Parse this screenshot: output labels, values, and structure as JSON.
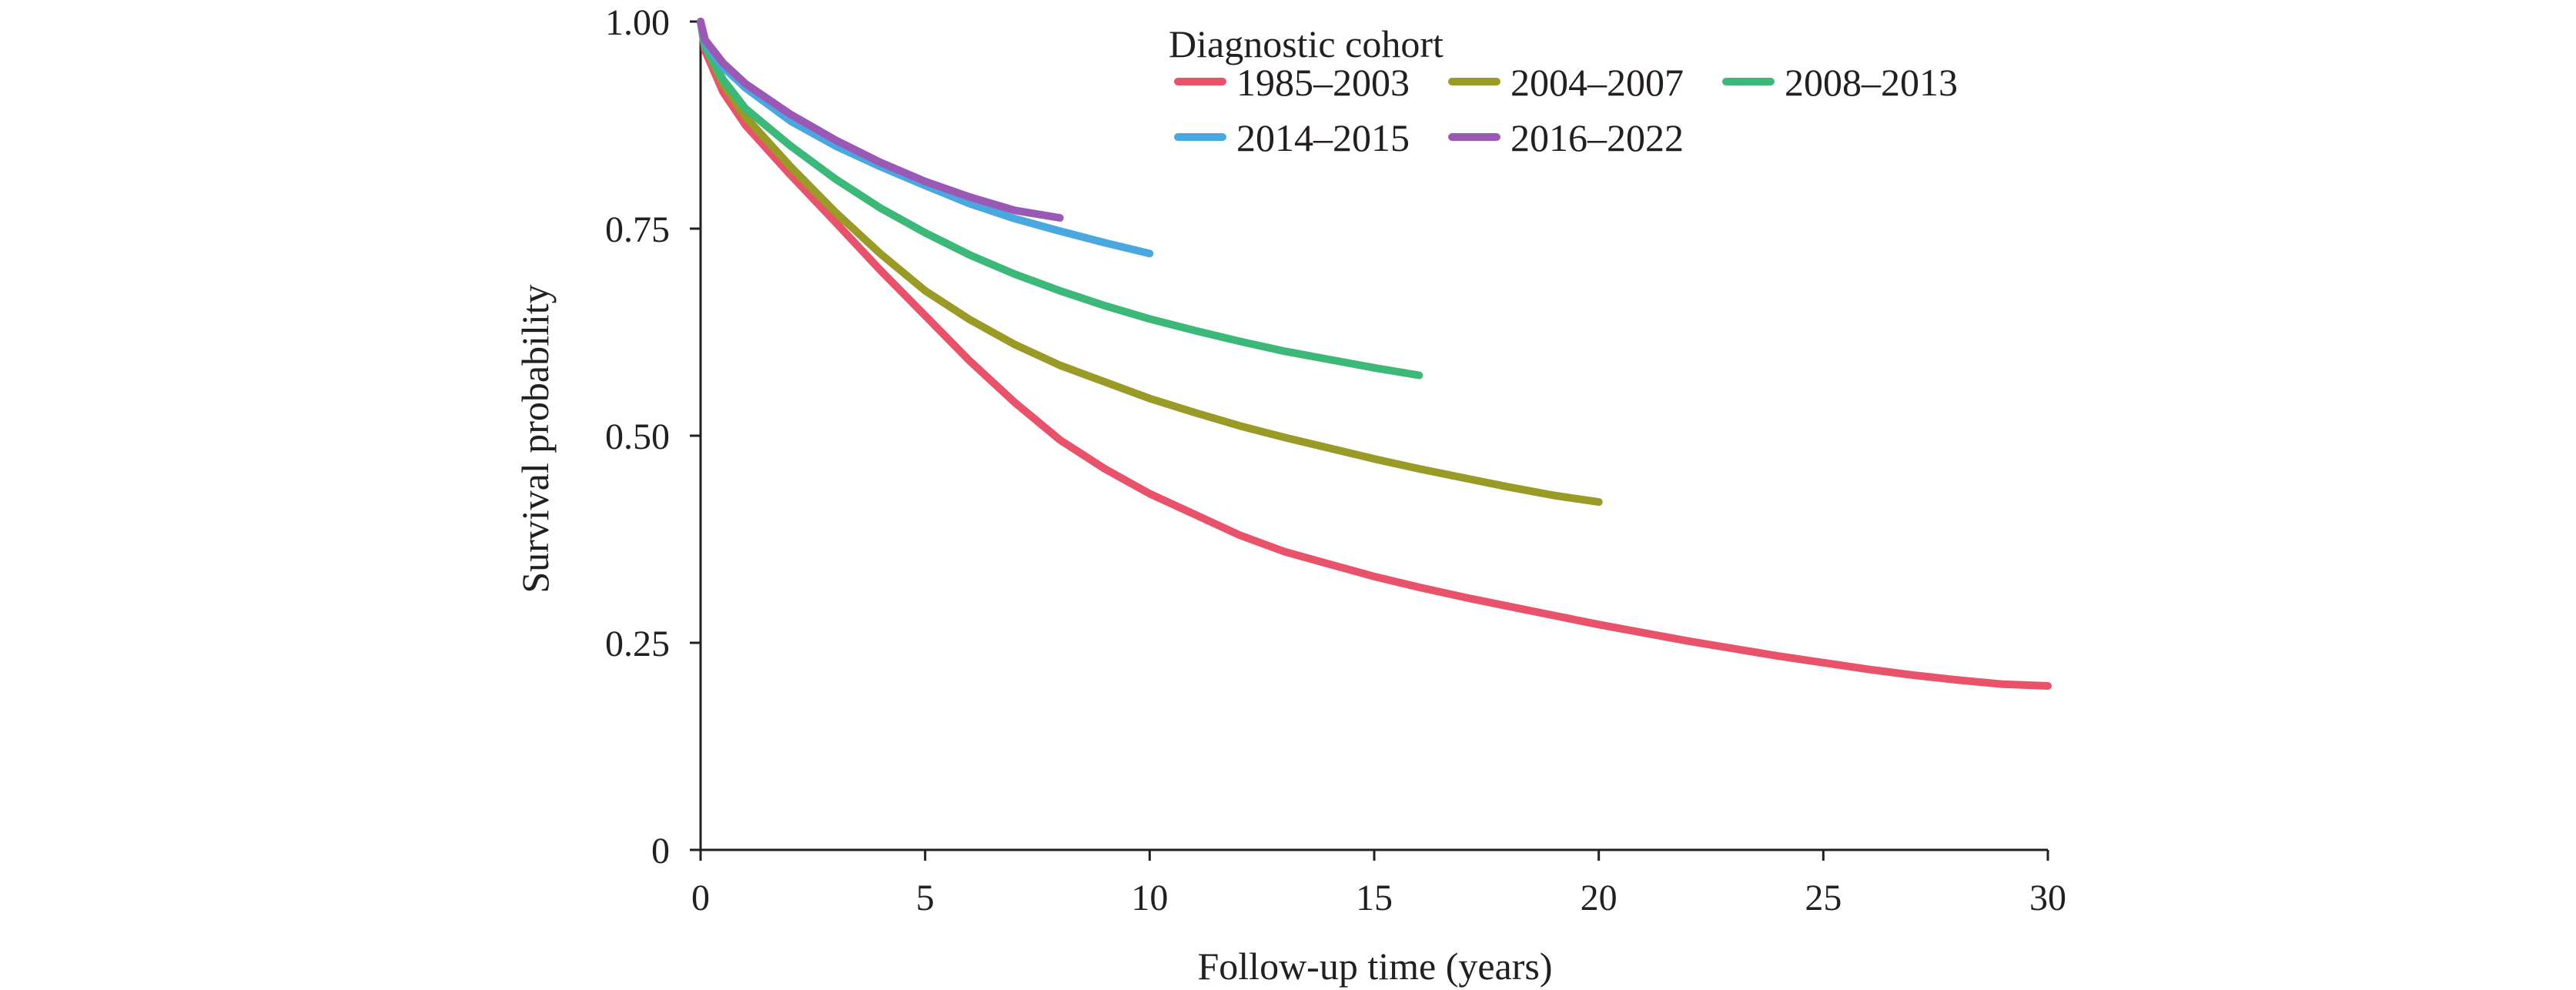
{
  "chart_data": {
    "type": "line",
    "title": "",
    "xlabel": "Follow-up time (years)",
    "ylabel": "Survival probability",
    "xlim": [
      0,
      30
    ],
    "ylim": [
      0,
      1
    ],
    "x_ticks": [
      0,
      5,
      10,
      15,
      20,
      25,
      30
    ],
    "x_tick_labels": [
      "0",
      "5",
      "10",
      "15",
      "20",
      "25",
      "30"
    ],
    "y_ticks": [
      0,
      0.25,
      0.5,
      0.75,
      1.0
    ],
    "y_tick_labels": [
      "0",
      "0.25",
      "0.50",
      "0.75",
      "1.00"
    ],
    "grid": false,
    "legend": {
      "title": "Diagnostic cohort",
      "position": "top-right"
    },
    "series": [
      {
        "name": "1985–2003",
        "color": "#e8536b",
        "points": [
          [
            0,
            1.0
          ],
          [
            0.1,
            0.965
          ],
          [
            0.5,
            0.915
          ],
          [
            1,
            0.875
          ],
          [
            2,
            0.815
          ],
          [
            3,
            0.758
          ],
          [
            4,
            0.7
          ],
          [
            5,
            0.645
          ],
          [
            6,
            0.59
          ],
          [
            7,
            0.54
          ],
          [
            8,
            0.495
          ],
          [
            9,
            0.46
          ],
          [
            10,
            0.43
          ],
          [
            11,
            0.405
          ],
          [
            12,
            0.38
          ],
          [
            13,
            0.36
          ],
          [
            14,
            0.345
          ],
          [
            15,
            0.33
          ],
          [
            16,
            0.317
          ],
          [
            17,
            0.305
          ],
          [
            18,
            0.294
          ],
          [
            19,
            0.283
          ],
          [
            20,
            0.272
          ],
          [
            21,
            0.262
          ],
          [
            22,
            0.252
          ],
          [
            23,
            0.243
          ],
          [
            24,
            0.234
          ],
          [
            25,
            0.226
          ],
          [
            26,
            0.218
          ],
          [
            27,
            0.211
          ],
          [
            28,
            0.205
          ],
          [
            29,
            0.2
          ],
          [
            30,
            0.198
          ]
        ]
      },
      {
        "name": "2004–2007",
        "color": "#9a9a27",
        "points": [
          [
            0,
            1.0
          ],
          [
            0.1,
            0.97
          ],
          [
            0.5,
            0.925
          ],
          [
            1,
            0.885
          ],
          [
            2,
            0.825
          ],
          [
            3,
            0.77
          ],
          [
            4,
            0.72
          ],
          [
            5,
            0.675
          ],
          [
            6,
            0.64
          ],
          [
            7,
            0.61
          ],
          [
            8,
            0.585
          ],
          [
            9,
            0.565
          ],
          [
            10,
            0.545
          ],
          [
            11,
            0.528
          ],
          [
            12,
            0.512
          ],
          [
            13,
            0.498
          ],
          [
            14,
            0.485
          ],
          [
            15,
            0.472
          ],
          [
            16,
            0.46
          ],
          [
            17,
            0.449
          ],
          [
            18,
            0.438
          ],
          [
            19,
            0.428
          ],
          [
            20,
            0.42
          ]
        ]
      },
      {
        "name": "2008–2013",
        "color": "#3cb878",
        "points": [
          [
            0,
            1.0
          ],
          [
            0.1,
            0.97
          ],
          [
            0.5,
            0.93
          ],
          [
            1,
            0.895
          ],
          [
            2,
            0.85
          ],
          [
            3,
            0.81
          ],
          [
            4,
            0.775
          ],
          [
            5,
            0.745
          ],
          [
            6,
            0.718
          ],
          [
            7,
            0.695
          ],
          [
            8,
            0.675
          ],
          [
            9,
            0.657
          ],
          [
            10,
            0.641
          ],
          [
            11,
            0.627
          ],
          [
            12,
            0.614
          ],
          [
            13,
            0.602
          ],
          [
            14,
            0.592
          ],
          [
            15,
            0.582
          ],
          [
            16,
            0.573
          ]
        ]
      },
      {
        "name": "2014–2015",
        "color": "#4aa8e0",
        "points": [
          [
            0,
            1.0
          ],
          [
            0.1,
            0.975
          ],
          [
            0.5,
            0.945
          ],
          [
            1,
            0.92
          ],
          [
            2,
            0.88
          ],
          [
            3,
            0.85
          ],
          [
            4,
            0.825
          ],
          [
            5,
            0.802
          ],
          [
            6,
            0.78
          ],
          [
            7,
            0.762
          ],
          [
            8,
            0.747
          ],
          [
            9,
            0.733
          ],
          [
            10,
            0.72
          ]
        ]
      },
      {
        "name": "2016–2022",
        "color": "#9b59b6",
        "points": [
          [
            0,
            1.0
          ],
          [
            0.1,
            0.978
          ],
          [
            0.5,
            0.95
          ],
          [
            1,
            0.925
          ],
          [
            2,
            0.888
          ],
          [
            3,
            0.857
          ],
          [
            4,
            0.83
          ],
          [
            5,
            0.807
          ],
          [
            6,
            0.788
          ],
          [
            7,
            0.772
          ],
          [
            8,
            0.763
          ]
        ]
      }
    ]
  }
}
